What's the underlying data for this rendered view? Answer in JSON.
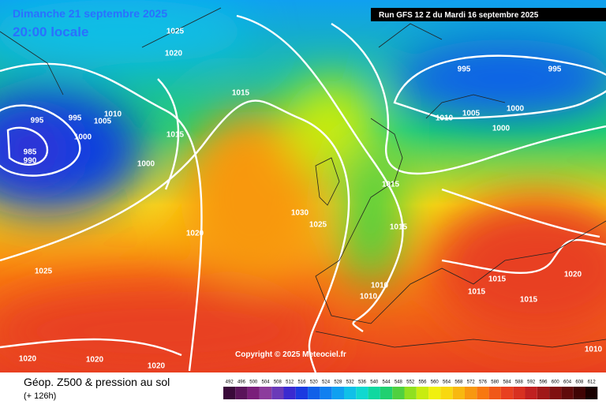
{
  "header": {
    "date": "Dimanche 21 septembre 2025",
    "time": "20:00 locale",
    "run": "Run GFS 12 Z du Mardi 16 septembre 2025"
  },
  "copyright": "Copyright © 2025 Meteociel.fr",
  "footer": {
    "title": "Géop. Z500 & pression au sol",
    "lead": "(+ 126h)"
  },
  "scale": {
    "labels": [
      492,
      496,
      500,
      504,
      508,
      512,
      516,
      520,
      524,
      528,
      532,
      536,
      540,
      544,
      548,
      552,
      556,
      560,
      564,
      568,
      572,
      576,
      580,
      584,
      588,
      592,
      596,
      600,
      604,
      608,
      612
    ],
    "colors": [
      "#3a0a3a",
      "#5a145a",
      "#7a1f7a",
      "#8c3c9c",
      "#6a3ab8",
      "#3a2ad0",
      "#1a3ae0",
      "#1060e8",
      "#1080f0",
      "#10a0f0",
      "#10c0e8",
      "#10d8d0",
      "#10d8a0",
      "#20d070",
      "#50d040",
      "#90e020",
      "#c8ec10",
      "#f0f010",
      "#f8d810",
      "#f8b810",
      "#f89810",
      "#f87810",
      "#f05818",
      "#e84020",
      "#d83020",
      "#c02020",
      "#a01818",
      "#801010",
      "#600a0a",
      "#400404",
      "#1a0000"
    ]
  },
  "isobars": [
    1025,
    1020,
    1015,
    1015,
    1010,
    1005,
    995,
    995,
    1000,
    985,
    990,
    1000,
    1020,
    1025,
    1020,
    1020,
    1020,
    1030,
    1025,
    1015,
    1015,
    1010,
    1010,
    995,
    995,
    1010,
    1005,
    1000,
    1000,
    1015,
    1015,
    1015,
    1020,
    1010
  ]
}
